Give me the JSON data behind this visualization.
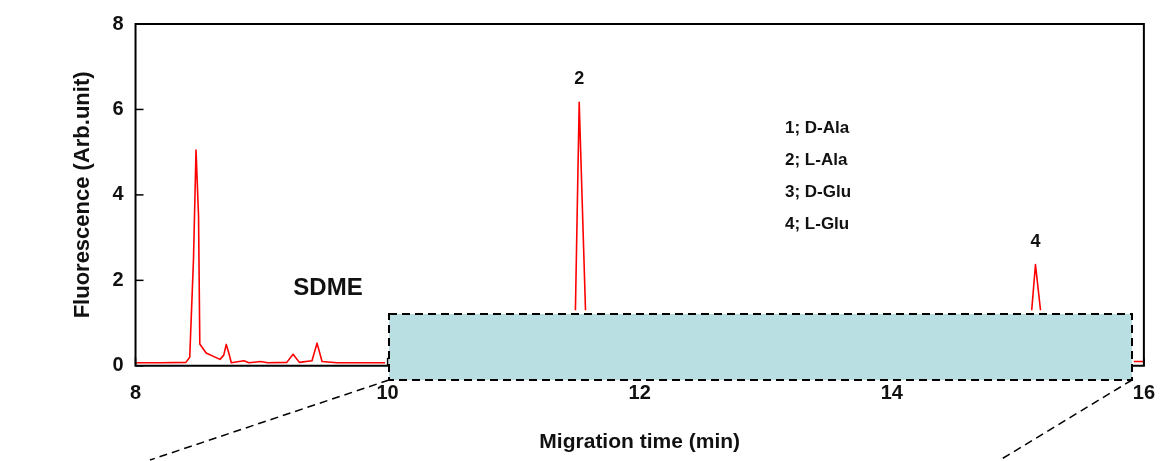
{
  "chart_data": {
    "type": "line",
    "xlabel": "Migration time (min)",
    "ylabel": "Fluorescence (Arb.unit)",
    "xlim": [
      8,
      16
    ],
    "xticks": [
      8,
      10,
      12,
      14,
      16
    ],
    "ylim": [
      0,
      8
    ],
    "yticks": [
      0,
      2,
      4,
      6,
      8
    ],
    "grid": false,
    "legend": false,
    "marker": "none",
    "line_style": "solid",
    "series": [
      {
        "color": "#ff0000",
        "x": [
          8.0,
          8.2,
          8.4,
          8.43,
          8.46,
          8.48,
          8.5,
          8.51,
          8.56,
          8.67,
          8.7,
          8.72,
          8.74,
          8.76,
          8.86,
          8.9,
          8.99,
          9.05,
          9.2,
          9.25,
          9.3,
          9.4,
          9.44,
          9.48,
          9.6,
          9.98,
          10.0,
          11.49,
          11.52,
          11.57,
          11.6,
          15.08,
          15.11,
          15.14,
          15.18,
          15.21,
          15.92,
          16.0
        ],
        "values": [
          0.07,
          0.07,
          0.08,
          0.2,
          2.5,
          5.05,
          3.5,
          0.51,
          0.3,
          0.15,
          0.25,
          0.5,
          0.3,
          0.07,
          0.12,
          0.07,
          0.1,
          0.07,
          0.08,
          0.27,
          0.08,
          0.12,
          0.53,
          0.1,
          0.07,
          0.07,
          null,
          1.3,
          6.17,
          1.3,
          null,
          null,
          1.3,
          2.37,
          1.3,
          null,
          0.1,
          0.1
        ]
      }
    ],
    "annotations": [
      {
        "text": "2",
        "x": 11.52,
        "y": 6.17
      },
      {
        "text": "4",
        "x": 15.14,
        "y": 2.37
      },
      "SDME",
      "1; D-Ala",
      "2; L-Ala",
      "3; D-Glu",
      "4; L-Glu"
    ]
  }
}
